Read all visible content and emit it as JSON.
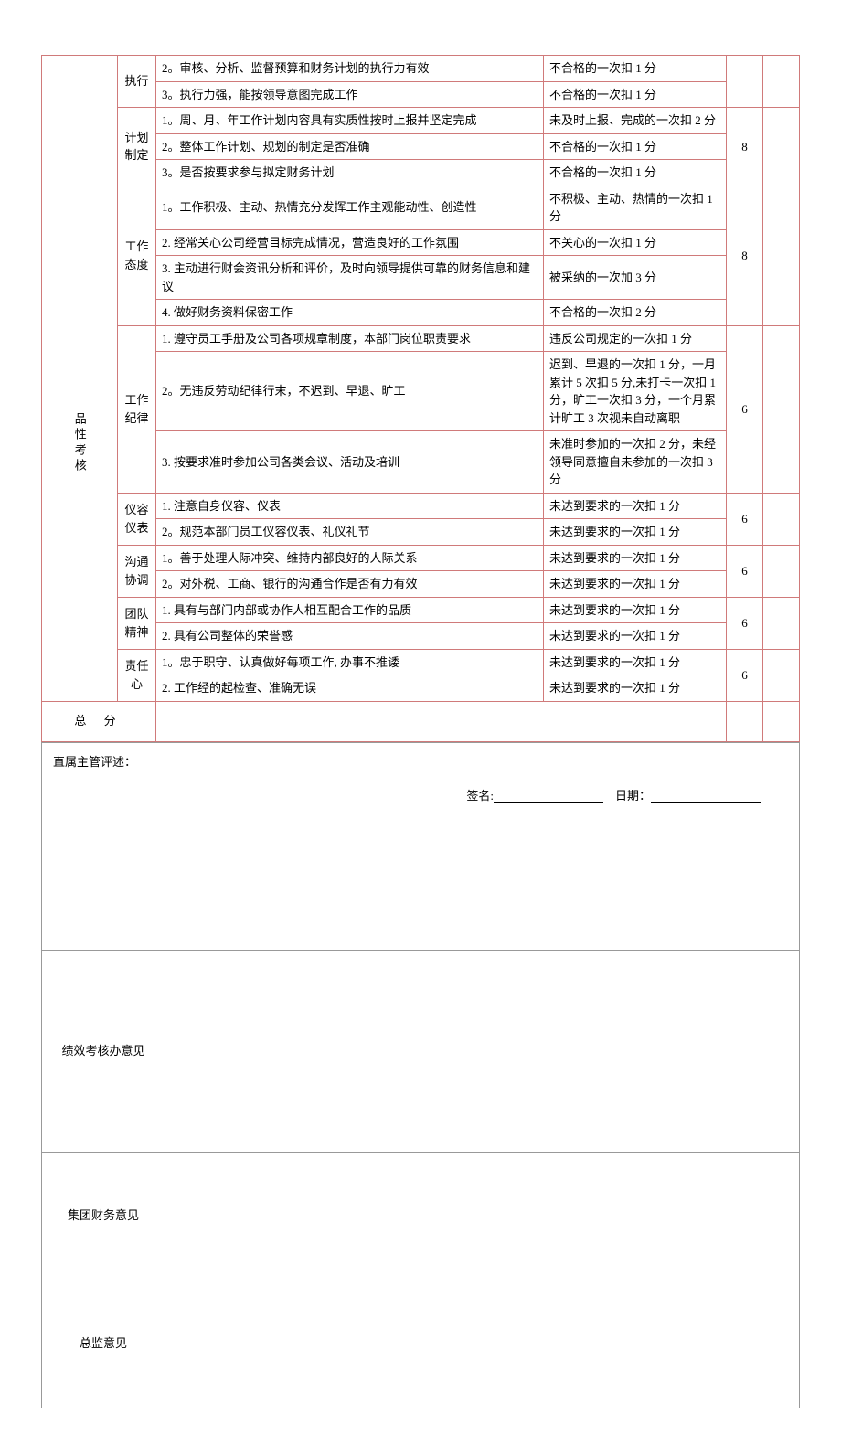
{
  "sections": {
    "exec": {
      "label": "执行",
      "rows": [
        {
          "desc": "2。审核、分析、监督预算和财务计划的执行力有效",
          "crit": "不合格的一次扣 1 分"
        },
        {
          "desc": "3。执行力强，能按领导意图完成工作",
          "crit": "不合格的一次扣 1 分"
        }
      ]
    },
    "plan": {
      "label": "计划制定",
      "score": "8",
      "rows": [
        {
          "desc": "1。周、月、年工作计划内容具有实质性按时上报并坚定完成",
          "crit": "未及时上报、完成的一次扣 2 分"
        },
        {
          "desc": "2。整体工作计划、规划的制定是否准确",
          "crit": "不合格的一次扣 1 分"
        },
        {
          "desc": "3。是否按要求参与拟定财务计划",
          "crit": "不合格的一次扣 1 分"
        }
      ]
    },
    "quality_label": "品性考核",
    "attitude": {
      "label": "工作态度",
      "score": "8",
      "rows": [
        {
          "desc": "1。工作积极、主动、热情充分发挥工作主观能动性、创造性",
          "crit": "不积极、主动、热情的一次扣 1 分"
        },
        {
          "desc": "2. 经常关心公司经营目标完成情况，营造良好的工作氛围",
          "crit": "不关心的一次扣 1 分"
        },
        {
          "desc": "3. 主动进行财会资讯分析和评价，及时向领导提供可靠的财务信息和建议",
          "crit": "被采纳的一次加 3 分"
        },
        {
          "desc": "4. 做好财务资料保密工作",
          "crit": "不合格的一次扣 2 分"
        }
      ]
    },
    "discipline": {
      "label": "工作纪律",
      "score": "6",
      "rows": [
        {
          "desc": "1. 遵守员工手册及公司各项规章制度，本部门岗位职责要求",
          "crit": "违反公司规定的一次扣 1 分"
        },
        {
          "desc": "2。无违反劳动纪律行末，不迟到、早退、旷工",
          "crit": "迟到、早退的一次扣 1 分，一月累计 5 次扣 5 分,未打卡一次扣 1 分，旷工一次扣 3 分，一个月累计旷工 3 次视未自动离职"
        },
        {
          "desc": "3. 按要求准时参加公司各类会议、活动及培训",
          "crit": "未准时参加的一次扣 2 分，未经领导同意擅自未参加的一次扣 3 分"
        }
      ]
    },
    "appearance": {
      "label": "仪容仪表",
      "score": "6",
      "rows": [
        {
          "desc": "1. 注意自身仪容、仪表",
          "crit": "未达到要求的一次扣 1 分"
        },
        {
          "desc": "2。规范本部门员工仪容仪表、礼仪礼节",
          "crit": "未达到要求的一次扣 1 分"
        }
      ]
    },
    "comm": {
      "label": "沟通协调",
      "score": "6",
      "rows": [
        {
          "desc": "1。善于处理人际冲突、维持内部良好的人际关系",
          "crit": "未达到要求的一次扣 1 分"
        },
        {
          "desc": "2。对外税、工商、银行的沟通合作是否有力有效",
          "crit": "未达到要求的一次扣 1 分"
        }
      ]
    },
    "team": {
      "label": "团队精神",
      "score": "6",
      "rows": [
        {
          "desc": "1. 具有与部门内部或协作人相互配合工作的品质",
          "crit": "未达到要求的一次扣 1 分"
        },
        {
          "desc": "2. 具有公司整体的荣誉感",
          "crit": "未达到要求的一次扣 1 分"
        }
      ]
    },
    "resp": {
      "label": "责任心",
      "score": "6",
      "rows": [
        {
          "desc": "1。忠于职守、认真做好每项工作, 办事不推诿",
          "crit": "未达到要求的一次扣 1 分"
        },
        {
          "desc": "2. 工作经的起检查、准确无误",
          "crit": "未达到要求的一次扣 1 分"
        }
      ]
    }
  },
  "total_label": "总 分",
  "supervisor": {
    "title": "直属主管评述：",
    "sign_label": "签名:",
    "date_label": "日期："
  },
  "opinions": {
    "perf": "绩效考核办意见",
    "group": "集团财务意见",
    "director": "总监意见"
  }
}
